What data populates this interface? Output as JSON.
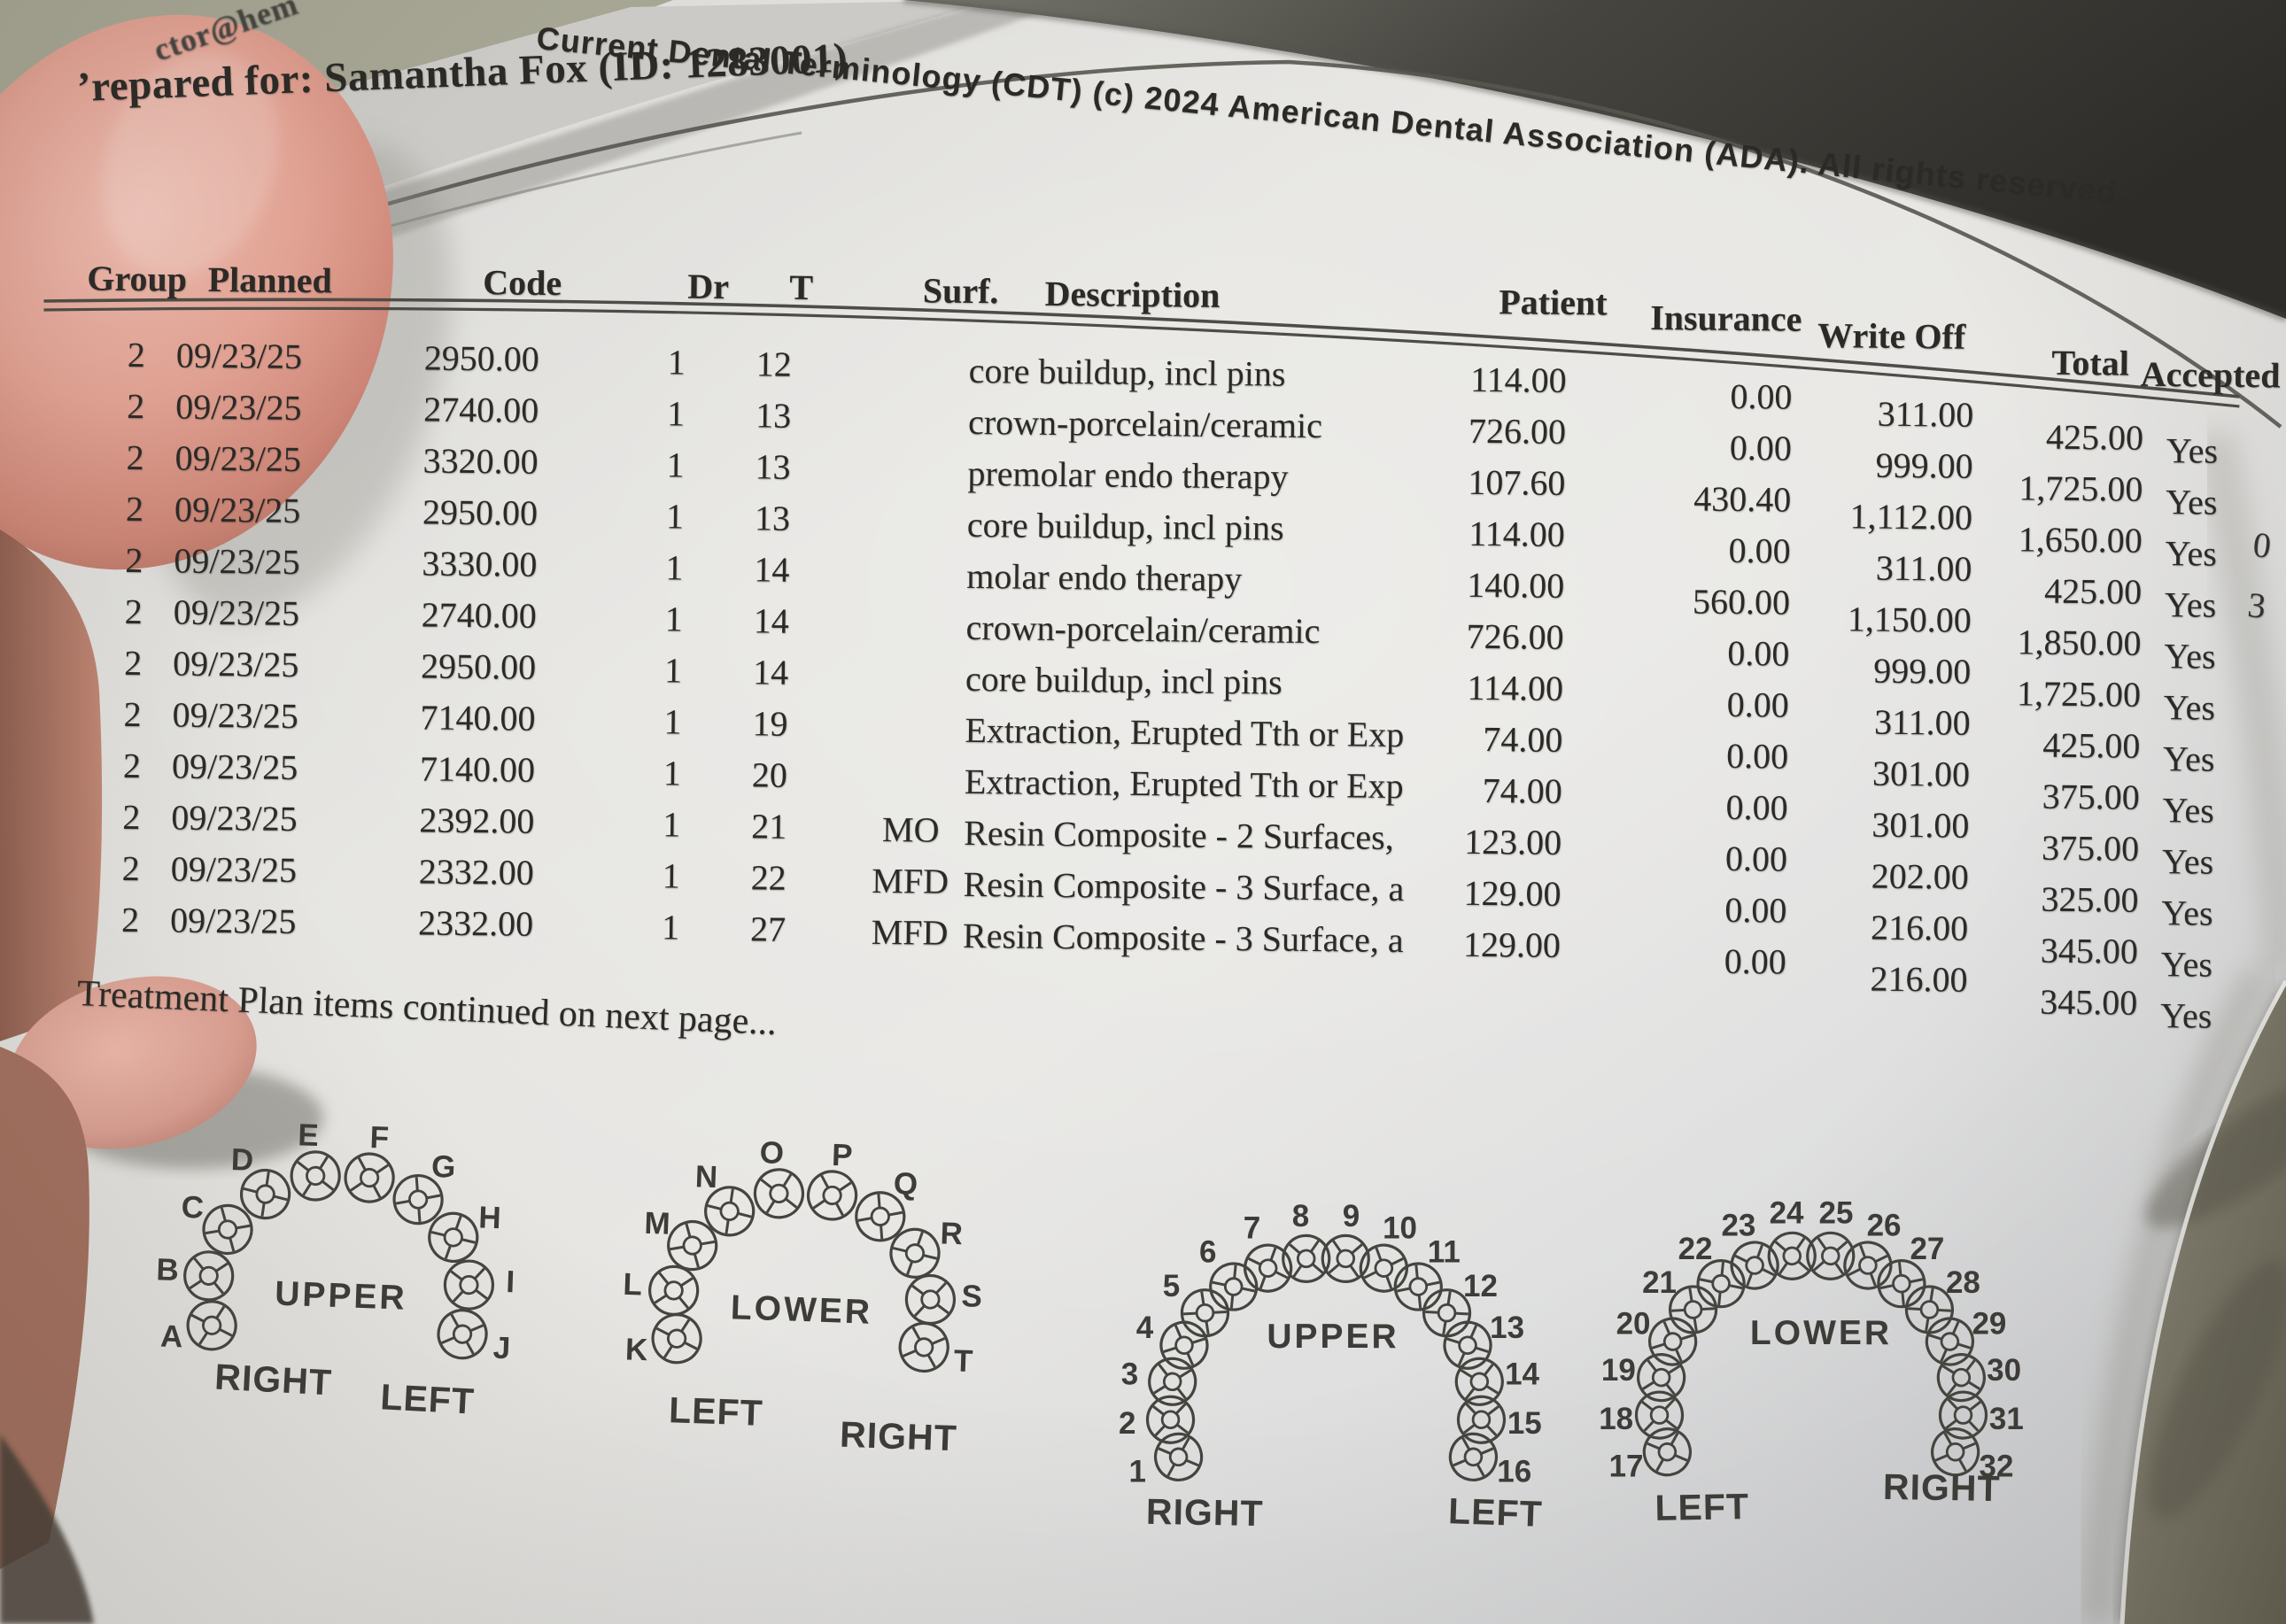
{
  "photo": {
    "email_fragment": "ctor@hem",
    "copyright": "Current Dental Terminology (CDT) (c)  2024 American Dental Association (ADA). All rights reserved.",
    "prepared_for": "’repared for:  Samantha Fox (ID:  1283001)",
    "continued_note": "Treatment Plan items continued on next page...",
    "edge_fragments": [
      "0",
      "3"
    ]
  },
  "table": {
    "headers": [
      "Group",
      "Planned",
      "Code",
      "Dr",
      "T",
      "Surf.",
      "Description",
      "Patient",
      "Insurance",
      "Write Off",
      "Total",
      "Accepted"
    ],
    "rows": [
      [
        "2",
        "09/23/25",
        "2950.00",
        "1",
        "12",
        "",
        "core buildup, incl pins",
        "114.00",
        "0.00",
        "311.00",
        "425.00",
        "Yes"
      ],
      [
        "2",
        "09/23/25",
        "2740.00",
        "1",
        "13",
        "",
        "crown-porcelain/ceramic",
        "726.00",
        "0.00",
        "999.00",
        "1,725.00",
        "Yes"
      ],
      [
        "2",
        "09/23/25",
        "3320.00",
        "1",
        "13",
        "",
        "premolar endo therapy",
        "107.60",
        "430.40",
        "1,112.00",
        "1,650.00",
        "Yes"
      ],
      [
        "2",
        "09/23/25",
        "2950.00",
        "1",
        "13",
        "",
        "core buildup, incl pins",
        "114.00",
        "0.00",
        "311.00",
        "425.00",
        "Yes"
      ],
      [
        "2",
        "09/23/25",
        "3330.00",
        "1",
        "14",
        "",
        "molar endo therapy",
        "140.00",
        "560.00",
        "1,150.00",
        "1,850.00",
        "Yes"
      ],
      [
        "2",
        "09/23/25",
        "2740.00",
        "1",
        "14",
        "",
        "crown-porcelain/ceramic",
        "726.00",
        "0.00",
        "999.00",
        "1,725.00",
        "Yes"
      ],
      [
        "2",
        "09/23/25",
        "2950.00",
        "1",
        "14",
        "",
        "core buildup, incl pins",
        "114.00",
        "0.00",
        "311.00",
        "425.00",
        "Yes"
      ],
      [
        "2",
        "09/23/25",
        "7140.00",
        "1",
        "19",
        "",
        "Extraction, Erupted Tth or Exp",
        "74.00",
        "0.00",
        "301.00",
        "375.00",
        "Yes"
      ],
      [
        "2",
        "09/23/25",
        "7140.00",
        "1",
        "20",
        "",
        "Extraction, Erupted Tth or Exp",
        "74.00",
        "0.00",
        "301.00",
        "375.00",
        "Yes"
      ],
      [
        "2",
        "09/23/25",
        "2392.00",
        "1",
        "21",
        "MO",
        "Resin Composite - 2 Surfaces,",
        "123.00",
        "0.00",
        "202.00",
        "325.00",
        "Yes"
      ],
      [
        "2",
        "09/23/25",
        "2332.00",
        "1",
        "22",
        "MFD",
        "Resin Composite - 3 Surface, a",
        "129.00",
        "0.00",
        "216.00",
        "345.00",
        "Yes"
      ],
      [
        "2",
        "09/23/25",
        "2332.00",
        "1",
        "27",
        "MFD",
        "Resin Composite - 3 Surface, a",
        "129.00",
        "0.00",
        "216.00",
        "345.00",
        "Yes"
      ]
    ]
  },
  "arches": [
    {
      "name": "primary-upper",
      "teeth": [
        "A",
        "B",
        "C",
        "D",
        "E",
        "F",
        "G",
        "H",
        "I",
        "J"
      ],
      "center_label": "UPPER",
      "bottom_left_label": "RIGHT",
      "bottom_right_label": "LEFT"
    },
    {
      "name": "primary-lower",
      "teeth": [
        "K",
        "L",
        "M",
        "N",
        "O",
        "P",
        "Q",
        "R",
        "S",
        "T"
      ],
      "center_label": "LOWER",
      "bottom_left_label": "LEFT",
      "bottom_right_label": "RIGHT"
    },
    {
      "name": "permanent-upper",
      "teeth": [
        "1",
        "2",
        "3",
        "4",
        "5",
        "6",
        "7",
        "8",
        "9",
        "10",
        "11",
        "12",
        "13",
        "14",
        "15",
        "16"
      ],
      "center_label": "UPPER",
      "bottom_left_label": "RIGHT",
      "bottom_right_label": "LEFT"
    },
    {
      "name": "permanent-lower",
      "teeth": [
        "17",
        "18",
        "19",
        "20",
        "21",
        "22",
        "23",
        "24",
        "25",
        "26",
        "27",
        "28",
        "29",
        "30",
        "31",
        "32"
      ],
      "center_label": "LOWER",
      "bottom_left_label": "LEFT",
      "bottom_right_label": "RIGHT"
    }
  ],
  "colors": {
    "paper": "#e0dfdc",
    "wall": "#a7a694",
    "dark_corner": "#2f2e2b",
    "couch": "#7d7968",
    "skin": "#dd9f90",
    "ink": "#2b2a27",
    "crease_line": "#57554f"
  }
}
